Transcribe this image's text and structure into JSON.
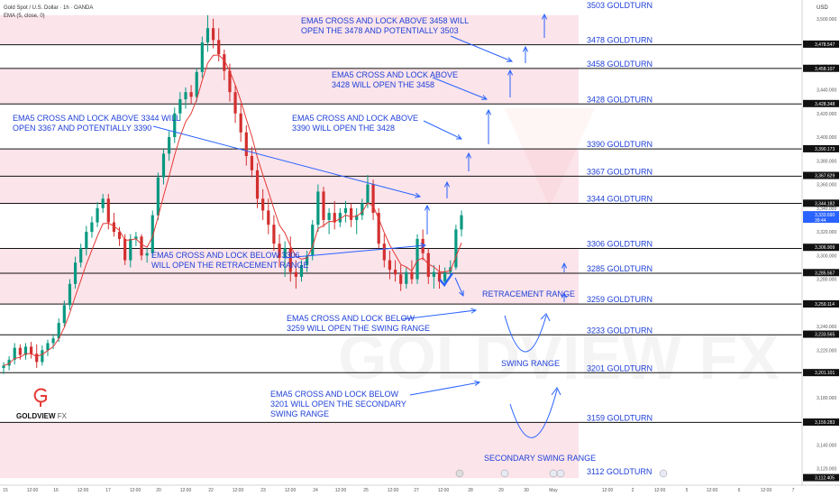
{
  "header": {
    "title": "Gold Spot / U.S. Dollar · 1h · OANDA",
    "indicator": "EMA (5, close, 0)",
    "currency": "USD"
  },
  "logo": {
    "name_bold": "GOLDVIEW",
    "name_light": "FX"
  },
  "watermark": "GOLDVIEW FX",
  "colors": {
    "band": "#fbe4ea",
    "arrow": "#2962ff",
    "bull": "#089981",
    "bear": "#d32f2f",
    "ema": "#e53935",
    "text_blue": "#1e3fd8"
  },
  "chart_data": {
    "type": "candlestick",
    "instrument": "Gold Spot / U.S. Dollar",
    "timeframe": "1h",
    "y_axis": {
      "min": 3106,
      "max": 3512,
      "ticks": [
        3500,
        3480,
        3460,
        3440,
        3420,
        3400,
        3380,
        3360,
        3340,
        3320,
        3300,
        3280,
        3260,
        3240,
        3220,
        3200,
        3180,
        3160,
        3140,
        3120
      ],
      "tick_labels": [
        "3,500.000",
        "3,480.000",
        "3,460.000",
        "3,440.000",
        "3,420.000",
        "3,400.000",
        "3,380.000",
        "3,360.000",
        "3,340.000",
        "3,320.000",
        "3,300.000",
        "3,280.000",
        "3,260.000",
        "3,240.000",
        "3,220.000",
        "3,200.000",
        "3,180.000",
        "3,160.000",
        "3,140.000",
        "3,120.000"
      ]
    },
    "x_axis": {
      "tick_labels": [
        "15",
        "12:00",
        "16",
        "12:00",
        "17",
        "12:00",
        "20",
        "12:00",
        "22",
        "12:00",
        "23",
        "12:00",
        "24",
        "12:00",
        "25",
        "12:00",
        "27",
        "12:00",
        "28",
        "29",
        "30",
        "May",
        "12:00",
        "2",
        "12:00",
        "5",
        "12:00",
        "6",
        "12:00",
        "7"
      ]
    },
    "level_badges": [
      {
        "value": 3478.547,
        "label": "3,478.547"
      },
      {
        "value": 3458.107,
        "label": "3,458.107"
      },
      {
        "value": 3428.348,
        "label": "3,428.348"
      },
      {
        "value": 3390.173,
        "label": "3,390.173"
      },
      {
        "value": 3367.629,
        "label": "3,367.629"
      },
      {
        "value": 3344.182,
        "label": "3,344.182"
      },
      {
        "value": 3306.909,
        "label": "3,306.909"
      },
      {
        "value": 3285.567,
        "label": "3,285.567"
      },
      {
        "value": 3259.114,
        "label": "3,259.114"
      },
      {
        "value": 3233.565,
        "label": "3,233.565"
      },
      {
        "value": 3201.101,
        "label": "3,201.101"
      },
      {
        "value": 3159.283,
        "label": "3,159.283"
      },
      {
        "value": 3112.405,
        "label": "3,112.405"
      }
    ],
    "current_price": {
      "value": 3333.69,
      "label": "3,333.690",
      "timer": "39:44"
    },
    "goldturn_levels": [
      {
        "value": 3503,
        "label": "3503 GOLDTURN"
      },
      {
        "value": 3478,
        "label": "3478 GOLDTURN"
      },
      {
        "value": 3458,
        "label": "3458 GOLDTURN"
      },
      {
        "value": 3428,
        "label": "3428 GOLDTURN"
      },
      {
        "value": 3390,
        "label": "3390 GOLDTURN"
      },
      {
        "value": 3367,
        "label": "3367 GOLDTURN"
      },
      {
        "value": 3344,
        "label": "3344 GOLDTURN"
      },
      {
        "value": 3306,
        "label": "3306 GOLDTURN"
      },
      {
        "value": 3285,
        "label": "3285 GOLDTURN"
      },
      {
        "value": 3259,
        "label": "3259 GOLDTURN"
      },
      {
        "value": 3233,
        "label": "3233 GOLDTURN"
      },
      {
        "value": 3201,
        "label": "3201 GOLDTURN"
      },
      {
        "value": 3159,
        "label": "3159 GOLDTURN"
      },
      {
        "value": 3112,
        "label": "3112 GOLDTURN"
      }
    ],
    "pink_bands": [
      [
        3478,
        3503
      ],
      [
        3428,
        3458
      ],
      [
        3344,
        3390
      ],
      [
        3259,
        3306
      ],
      [
        3112,
        3159
      ]
    ],
    "annotations": [
      {
        "lines": [
          "EMA5 CROSS AND LOCK ABOVE 3458 WILL",
          "OPEN THE 3478 AND POTENTIALLY 3503"
        ]
      },
      {
        "lines": [
          "EMA5 CROSS AND LOCK ABOVE",
          "3428 WILL OPEN THE 3458"
        ]
      },
      {
        "lines": [
          "EMA5 CROSS AND LOCK ABOVE 3344 WILL",
          "OPEN 3367 AND POTENTIALLY 3390"
        ]
      },
      {
        "lines": [
          "EMA5 CROSS AND LOCK ABOVE",
          "3390 WILL OPEN THE 3428"
        ]
      },
      {
        "lines": [
          "EMA5 CROSS AND LOCK BELOW 3306",
          "WILL OPEN THE RETRACEMENT RANGE"
        ]
      },
      {
        "lines": [
          "EMA5 CROSS AND LOCK BELOW",
          "3259 WILL OPEN THE SWING RANGE"
        ]
      },
      {
        "lines": [
          "EMA5 CROSS AND LOCK BELOW",
          "3201 WILL OPEN THE SECONDARY",
          "SWING RANGE"
        ]
      }
    ],
    "range_labels": [
      "RETRACEMENT RANGE",
      "SWING RANGE",
      "SECONDARY SWING RANGE"
    ],
    "candles": [
      [
        3205,
        3210,
        3200,
        3207
      ],
      [
        3207,
        3215,
        3203,
        3212
      ],
      [
        3212,
        3226,
        3208,
        3222
      ],
      [
        3222,
        3225,
        3212,
        3216
      ],
      [
        3216,
        3226,
        3212,
        3223
      ],
      [
        3223,
        3227,
        3213,
        3217
      ],
      [
        3217,
        3225,
        3205,
        3210
      ],
      [
        3210,
        3224,
        3207,
        3220
      ],
      [
        3220,
        3229,
        3215,
        3226
      ],
      [
        3226,
        3233,
        3221,
        3230
      ],
      [
        3230,
        3247,
        3227,
        3243
      ],
      [
        3243,
        3262,
        3240,
        3258
      ],
      [
        3258,
        3280,
        3254,
        3276
      ],
      [
        3276,
        3299,
        3272,
        3294
      ],
      [
        3294,
        3310,
        3290,
        3306
      ],
      [
        3306,
        3325,
        3300,
        3320
      ],
      [
        3320,
        3333,
        3315,
        3328
      ],
      [
        3328,
        3345,
        3324,
        3340
      ],
      [
        3340,
        3352,
        3336,
        3348
      ],
      [
        3348,
        3352,
        3322,
        3328
      ],
      [
        3328,
        3336,
        3316,
        3320
      ],
      [
        3320,
        3324,
        3308,
        3314
      ],
      [
        3314,
        3318,
        3292,
        3296
      ],
      [
        3296,
        3318,
        3290,
        3314
      ],
      [
        3314,
        3320,
        3308,
        3316
      ],
      [
        3316,
        3318,
        3296,
        3300
      ],
      [
        3300,
        3306,
        3294,
        3302
      ],
      [
        3302,
        3338,
        3298,
        3334
      ],
      [
        3334,
        3370,
        3330,
        3366
      ],
      [
        3366,
        3390,
        3360,
        3386
      ],
      [
        3386,
        3405,
        3380,
        3400
      ],
      [
        3400,
        3425,
        3395,
        3420
      ],
      [
        3420,
        3438,
        3414,
        3432
      ],
      [
        3432,
        3442,
        3424,
        3438
      ],
      [
        3438,
        3444,
        3428,
        3434
      ],
      [
        3434,
        3458,
        3430,
        3455
      ],
      [
        3455,
        3485,
        3450,
        3480
      ],
      [
        3480,
        3503,
        3472,
        3492
      ],
      [
        3492,
        3500,
        3475,
        3482
      ],
      [
        3482,
        3492,
        3464,
        3470
      ],
      [
        3470,
        3474,
        3448,
        3456
      ],
      [
        3456,
        3462,
        3430,
        3438
      ],
      [
        3438,
        3444,
        3412,
        3420
      ],
      [
        3420,
        3428,
        3396,
        3404
      ],
      [
        3404,
        3410,
        3376,
        3384
      ],
      [
        3384,
        3392,
        3366,
        3372
      ],
      [
        3372,
        3378,
        3340,
        3348
      ],
      [
        3348,
        3356,
        3330,
        3338
      ],
      [
        3338,
        3348,
        3318,
        3326
      ],
      [
        3326,
        3334,
        3304,
        3310
      ],
      [
        3310,
        3318,
        3290,
        3298
      ],
      [
        3298,
        3312,
        3282,
        3306
      ],
      [
        3306,
        3316,
        3278,
        3286
      ],
      [
        3286,
        3296,
        3272,
        3282
      ],
      [
        3282,
        3296,
        3278,
        3292
      ],
      [
        3292,
        3304,
        3286,
        3300
      ],
      [
        3300,
        3330,
        3296,
        3326
      ],
      [
        3326,
        3360,
        3320,
        3354
      ],
      [
        3354,
        3358,
        3324,
        3330
      ],
      [
        3330,
        3340,
        3318,
        3336
      ],
      [
        3336,
        3346,
        3322,
        3328
      ],
      [
        3328,
        3340,
        3324,
        3336
      ],
      [
        3336,
        3346,
        3328,
        3340
      ],
      [
        3340,
        3344,
        3324,
        3330
      ],
      [
        3330,
        3340,
        3318,
        3334
      ],
      [
        3334,
        3348,
        3330,
        3344
      ],
      [
        3344,
        3368,
        3340,
        3360
      ],
      [
        3360,
        3364,
        3330,
        3336
      ],
      [
        3336,
        3340,
        3306,
        3310
      ],
      [
        3310,
        3318,
        3290,
        3296
      ],
      [
        3296,
        3304,
        3280,
        3288
      ],
      [
        3288,
        3296,
        3278,
        3284
      ],
      [
        3284,
        3292,
        3270,
        3276
      ],
      [
        3276,
        3290,
        3272,
        3286
      ],
      [
        3286,
        3296,
        3276,
        3280
      ],
      [
        3280,
        3318,
        3276,
        3314
      ],
      [
        3314,
        3322,
        3296,
        3302
      ],
      [
        3302,
        3306,
        3276,
        3282
      ],
      [
        3282,
        3292,
        3272,
        3286
      ],
      [
        3286,
        3292,
        3272,
        3278
      ],
      [
        3278,
        3290,
        3274,
        3286
      ],
      [
        3286,
        3296,
        3282,
        3290
      ],
      [
        3290,
        3326,
        3288,
        3322
      ],
      [
        3322,
        3338,
        3316,
        3334
      ]
    ],
    "ema_period": 5
  }
}
